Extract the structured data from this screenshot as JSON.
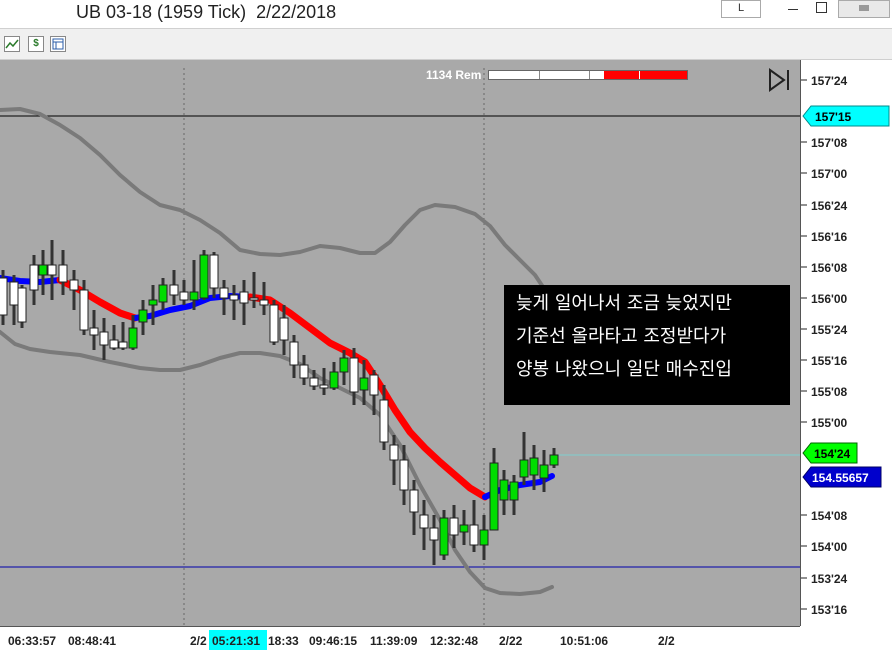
{
  "window": {
    "title": "UB 03-18 (1959 Tick)  2/22/2018",
    "restore_label": "L",
    "close_label": ""
  },
  "toolbar": {
    "icons": [
      "chart-icon",
      "dollar-icon",
      "properties-icon"
    ],
    "dollar_glyph": "$"
  },
  "status": {
    "remaining_label": "1134 Rem"
  },
  "price_axis": {
    "labels": [
      "157'24",
      "157'08",
      "157'00",
      "156'24",
      "156'16",
      "156'08",
      "156'00",
      "155'24",
      "155'16",
      "155'08",
      "155'00",
      "154'08",
      "154'00",
      "153'24",
      "153'16"
    ],
    "marker_upper": "157'15",
    "marker_last": "154'24",
    "marker_value": "154.55657"
  },
  "time_axis": {
    "labels": [
      "06:33:57",
      "08:48:41",
      "2/2",
      "05:21:31",
      "18:33",
      "09:46:15",
      "11:39:09",
      "12:32:48",
      "2/22",
      "10:51:06",
      "2/2"
    ]
  },
  "annotation": {
    "lines": [
      "늦게 일어나서 조금 늦었지만",
      "기준선 올라타고 조정받다가",
      "양봉 나왔으니 일단 매수진입"
    ]
  },
  "colors": {
    "chart_bg": "#a9a9a9",
    "up_candle": "#00dd00",
    "down_candle": "#ffffff",
    "ma_down": "#ff0000",
    "ma_up": "#0000ff",
    "band": "#7a7a7a",
    "marker_cyan": "#00ffff",
    "marker_green": "#00ff00",
    "marker_blue": "#0000cc"
  }
}
